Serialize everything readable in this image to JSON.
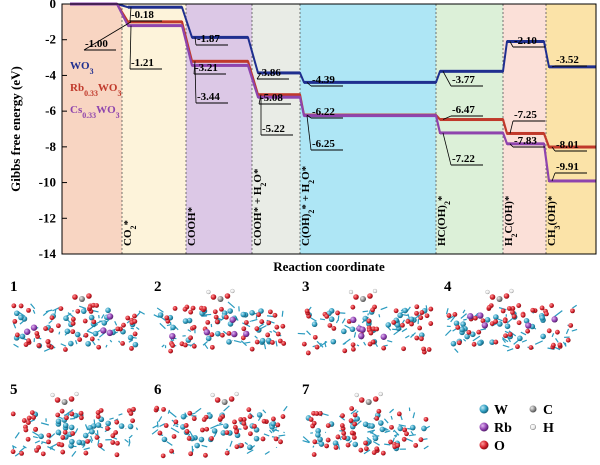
{
  "chart_data": {
    "type": "line",
    "title": "",
    "xlabel": "Reaction coordinate",
    "ylabel": "Gibbs free energy (eV)",
    "ylim": [
      -14,
      0
    ],
    "yticks": [
      "0",
      "-2",
      "-4",
      "-6",
      "-8",
      "-10",
      "-12",
      "-14"
    ],
    "ytick_values": [
      0,
      -2,
      -4,
      -6,
      -8,
      -10,
      -12,
      -14
    ],
    "states": [
      "",
      "CO2*",
      "COOH*",
      "COOH* + H2O*",
      "C(OH)2* + H2O*",
      "HC(OH)2*",
      "H2C(OH)*",
      "CH3(OH)*"
    ],
    "state_label_parts": [
      [],
      [
        {
          "t": "CO"
        },
        {
          "t": "2",
          "sub": true
        },
        {
          "t": "*"
        }
      ],
      [
        {
          "t": "COOH*"
        }
      ],
      [
        {
          "t": "COOH* + H"
        },
        {
          "t": "2",
          "sub": true
        },
        {
          "t": "O*"
        }
      ],
      [
        {
          "t": "C(OH)"
        },
        {
          "t": "2",
          "sub": true
        },
        {
          "t": "* + H"
        },
        {
          "t": "2",
          "sub": true
        },
        {
          "t": "O*"
        }
      ],
      [
        {
          "t": "HC(OH)"
        },
        {
          "t": "2",
          "sub": true
        },
        {
          "t": "*"
        }
      ],
      [
        {
          "t": "H"
        },
        {
          "t": "2",
          "sub": true
        },
        {
          "t": "C(OH)*"
        }
      ],
      [
        {
          "t": "CH"
        },
        {
          "t": "3",
          "sub": true
        },
        {
          "t": "(OH)*"
        }
      ]
    ],
    "region_colors": [
      "#f8d5c2",
      "#fdf3da",
      "#dcc8e6",
      "#e9ece6",
      "#aee6f5",
      "#dcf0d8",
      "#fbe0d8",
      "#fbe3a8"
    ],
    "series": [
      {
        "name": "WO3",
        "name_parts": [
          {
            "t": "WO"
          },
          {
            "t": "3",
            "sub": true
          }
        ],
        "color": "#1f2f8f",
        "values": [
          0,
          -0.18,
          -1.87,
          -3.86,
          -4.39,
          -3.77,
          -2.1,
          -3.52
        ]
      },
      {
        "name": "Rb0.33WO3",
        "name_parts": [
          {
            "t": "Rb"
          },
          {
            "t": "0.33",
            "sub": true
          },
          {
            "t": "WO"
          },
          {
            "t": "3",
            "sub": true
          }
        ],
        "color": "#c0392b",
        "values": [
          0,
          -1.0,
          -3.21,
          -5.08,
          -6.22,
          -6.47,
          -7.25,
          -8.01
        ]
      },
      {
        "name": "Cs0.33WO3",
        "name_parts": [
          {
            "t": "Cs"
          },
          {
            "t": "0.33",
            "sub": true
          },
          {
            "t": "WO"
          },
          {
            "t": "3",
            "sub": true
          }
        ],
        "color": "#8e44ad",
        "values": [
          0,
          -1.21,
          -3.44,
          -5.22,
          -6.25,
          -7.22,
          -7.83,
          -9.91
        ]
      }
    ],
    "value_labels": [
      {
        "text": "-0.18",
        "state": 1,
        "series": 0
      },
      {
        "text": "-1.00",
        "state": 1,
        "series": 1
      },
      {
        "text": "-1.21",
        "state": 1,
        "series": 2
      },
      {
        "text": "-1.87",
        "state": 2,
        "series": 0
      },
      {
        "text": "-3.21",
        "state": 2,
        "series": 1
      },
      {
        "text": "-3.44",
        "state": 2,
        "series": 2
      },
      {
        "text": "-3.86",
        "state": 3,
        "series": 0
      },
      {
        "text": "-5.08",
        "state": 3,
        "series": 1
      },
      {
        "text": "-5.22",
        "state": 3,
        "series": 2
      },
      {
        "text": "-4.39",
        "state": 4,
        "series": 0
      },
      {
        "text": "-6.22",
        "state": 4,
        "series": 1
      },
      {
        "text": "-6.25",
        "state": 4,
        "series": 2
      },
      {
        "text": "-3.77",
        "state": 5,
        "series": 0
      },
      {
        "text": "-6.47",
        "state": 5,
        "series": 1
      },
      {
        "text": "-7.22",
        "state": 5,
        "series": 2
      },
      {
        "text": "-2.10",
        "state": 6,
        "series": 0
      },
      {
        "text": "-7.25",
        "state": 6,
        "series": 1
      },
      {
        "text": "-7.83",
        "state": 6,
        "series": 2
      },
      {
        "text": "-3.52",
        "state": 7,
        "series": 0
      },
      {
        "text": "-8.01",
        "state": 7,
        "series": 1
      },
      {
        "text": "-9.91",
        "state": 7,
        "series": 2
      }
    ]
  },
  "structures": {
    "panels": [
      "1",
      "2",
      "3",
      "4",
      "5",
      "6",
      "7"
    ]
  },
  "legend": {
    "items": [
      {
        "symbol": "W",
        "color": "#2b9bbf"
      },
      {
        "symbol": "C",
        "color": "#8a8a8a"
      },
      {
        "symbol": "Rb",
        "color": "#8e3fb0"
      },
      {
        "symbol": "H",
        "color": "#e8e8e8"
      },
      {
        "symbol": "O",
        "color": "#d41f2a"
      }
    ]
  }
}
